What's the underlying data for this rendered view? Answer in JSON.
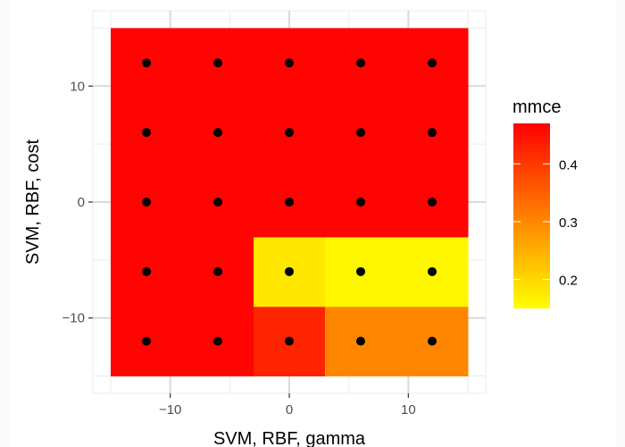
{
  "chart_data": {
    "type": "heatmap",
    "title": "",
    "xlabel": "SVM, RBF, gamma",
    "ylabel": "SVM, RBF, cost",
    "x": [
      -12,
      -6,
      0,
      6,
      12
    ],
    "y": [
      -12,
      -6,
      0,
      6,
      12
    ],
    "xlim": [
      -16.5,
      16.5
    ],
    "ylim": [
      -16.5,
      16.5
    ],
    "x_ticks": [
      -10,
      0,
      10
    ],
    "y_ticks": [
      -10,
      0,
      10
    ],
    "x_tick_labels": [
      "−10",
      "0",
      "10"
    ],
    "y_tick_labels": [
      "−10",
      "0",
      "10"
    ],
    "grid": true,
    "points_shown": true,
    "fill_variable": "mmce",
    "value_rows_by_y": [
      {
        "y": -12,
        "values": [
          0.465,
          0.465,
          0.425,
          0.3,
          0.3
        ]
      },
      {
        "y": -6,
        "values": [
          0.465,
          0.465,
          0.18,
          0.16,
          0.16
        ]
      },
      {
        "y": 0,
        "values": [
          0.465,
          0.465,
          0.465,
          0.465,
          0.465
        ]
      },
      {
        "y": 6,
        "values": [
          0.465,
          0.465,
          0.465,
          0.465,
          0.465
        ]
      },
      {
        "y": 12,
        "values": [
          0.465,
          0.465,
          0.465,
          0.465,
          0.465
        ]
      }
    ],
    "legend": {
      "title": "mmce",
      "placement": "right",
      "range": [
        0.15,
        0.47
      ],
      "ticks": [
        0.2,
        0.3,
        0.4
      ],
      "tick_labels": [
        "0.2",
        "0.3",
        "0.4"
      ],
      "low_color": "#ffff00",
      "high_color": "#ff0000"
    }
  },
  "colors": {
    "panel_background": "#ffffff",
    "page_background": "#fafafa",
    "grid_major": "#d9d9d9",
    "grid_minor": "#ebebeb",
    "point": "#000000"
  }
}
